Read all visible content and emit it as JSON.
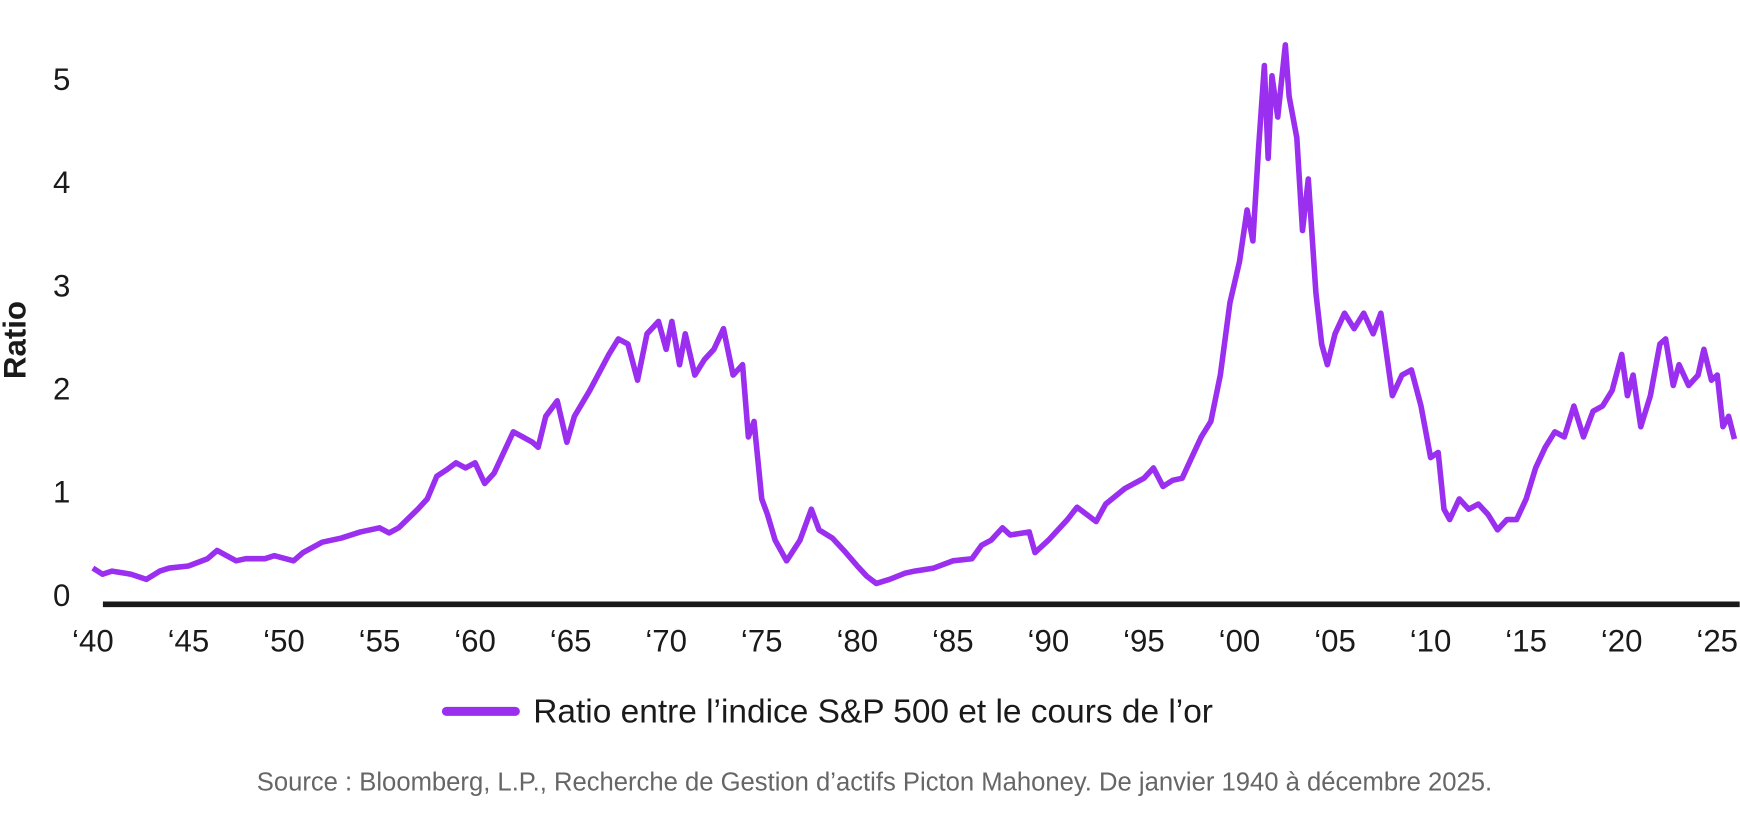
{
  "chart_data": {
    "type": "line",
    "ylabel": "Ratio",
    "legend_position": "bottom",
    "source": "Source : Bloomberg, L.P., Recherche de Gestion d’actifs Picton Mahoney. De janvier 1940 à décembre 2025.",
    "xlim": [
      1940,
      2026
    ],
    "ylim": [
      0,
      5.5
    ],
    "yticks": [
      0,
      1,
      2,
      3,
      4,
      5
    ],
    "xticks": [
      {
        "value": 1940,
        "label": "‘40"
      },
      {
        "value": 1945,
        "label": "‘45"
      },
      {
        "value": 1950,
        "label": "‘50"
      },
      {
        "value": 1955,
        "label": "‘55"
      },
      {
        "value": 1960,
        "label": "‘60"
      },
      {
        "value": 1965,
        "label": "‘65"
      },
      {
        "value": 1970,
        "label": "‘70"
      },
      {
        "value": 1975,
        "label": "‘75"
      },
      {
        "value": 1980,
        "label": "‘80"
      },
      {
        "value": 1985,
        "label": "‘85"
      },
      {
        "value": 1990,
        "label": "‘90"
      },
      {
        "value": 1995,
        "label": "‘95"
      },
      {
        "value": 2000,
        "label": "‘00"
      },
      {
        "value": 2005,
        "label": "‘05"
      },
      {
        "value": 2010,
        "label": "‘10"
      },
      {
        "value": 2015,
        "label": "‘15"
      },
      {
        "value": 2020,
        "label": "‘20"
      },
      {
        "value": 2025,
        "label": "‘25"
      }
    ],
    "grid": false,
    "x": [
      1940,
      1940.5,
      1941,
      1942,
      1942.8,
      1943.5,
      1944,
      1945,
      1946,
      1946.5,
      1947,
      1947.5,
      1948,
      1949,
      1949.5,
      1950.5,
      1951,
      1952,
      1953,
      1954,
      1955,
      1955.5,
      1956,
      1957,
      1957.5,
      1958,
      1958.5,
      1959,
      1959.5,
      1960,
      1960.5,
      1961,
      1961.5,
      1962,
      1962.5,
      1963,
      1963.3,
      1963.7,
      1964.3,
      1964.8,
      1965.2,
      1966,
      1967,
      1967.5,
      1968,
      1968.5,
      1969,
      1969.6,
      1970,
      1970.3,
      1970.7,
      1971,
      1971.5,
      1972,
      1972.5,
      1973,
      1973.5,
      1974,
      1974.3,
      1974.6,
      1975,
      1975.3,
      1975.7,
      1976.3,
      1977,
      1977.6,
      1978,
      1978.7,
      1979.3,
      1980,
      1980.5,
      1981,
      1981.7,
      1982.5,
      1983,
      1984,
      1985,
      1986,
      1986.5,
      1987,
      1987.6,
      1988,
      1989,
      1989.3,
      1990,
      1991,
      1991.5,
      1992.5,
      1993,
      1994,
      1995,
      1995.5,
      1996,
      1996.5,
      1997,
      1997.5,
      1998,
      1998.5,
      1999,
      1999.5,
      2000,
      2000.4,
      2000.7,
      2001,
      2001.3,
      2001.5,
      2001.7,
      2002,
      2002.4,
      2002.6,
      2003,
      2003.3,
      2003.6,
      2004,
      2004.3,
      2004.6,
      2005,
      2005.5,
      2006,
      2006.5,
      2007,
      2007.4,
      2008,
      2008.5,
      2009,
      2009.5,
      2010,
      2010.4,
      2010.7,
      2011,
      2011.5,
      2012,
      2012.5,
      2013,
      2013.5,
      2014,
      2014.5,
      2015,
      2015.5,
      2016,
      2016.5,
      2017,
      2017.5,
      2018,
      2018.5,
      2019,
      2019.5,
      2020,
      2020.3,
      2020.6,
      2021,
      2021.5,
      2022,
      2022.3,
      2022.7,
      2023,
      2023.5,
      2024,
      2024.3,
      2024.7,
      2025,
      2025.3,
      2025.6,
      2025.9
    ],
    "series": [
      {
        "name": "Ratio entre l’indice S&P 500 et le cours de l’or",
        "color": "#9b2ff0",
        "values": [
          0.33,
          0.27,
          0.3,
          0.27,
          0.22,
          0.3,
          0.33,
          0.35,
          0.42,
          0.5,
          0.45,
          0.4,
          0.42,
          0.42,
          0.45,
          0.4,
          0.48,
          0.58,
          0.62,
          0.68,
          0.72,
          0.67,
          0.72,
          0.9,
          1.0,
          1.22,
          1.28,
          1.35,
          1.3,
          1.35,
          1.15,
          1.25,
          1.45,
          1.65,
          1.6,
          1.55,
          1.5,
          1.8,
          1.95,
          1.55,
          1.8,
          2.05,
          2.4,
          2.55,
          2.5,
          2.15,
          2.6,
          2.72,
          2.45,
          2.72,
          2.3,
          2.6,
          2.2,
          2.35,
          2.45,
          2.65,
          2.2,
          2.3,
          1.6,
          1.75,
          1.0,
          0.85,
          0.6,
          0.4,
          0.6,
          0.9,
          0.7,
          0.62,
          0.5,
          0.35,
          0.25,
          0.18,
          0.22,
          0.28,
          0.3,
          0.33,
          0.4,
          0.42,
          0.55,
          0.6,
          0.72,
          0.65,
          0.68,
          0.48,
          0.6,
          0.8,
          0.92,
          0.78,
          0.95,
          1.1,
          1.2,
          1.3,
          1.12,
          1.18,
          1.2,
          1.4,
          1.6,
          1.75,
          2.2,
          2.9,
          3.3,
          3.8,
          3.5,
          4.4,
          5.2,
          4.3,
          5.1,
          4.7,
          5.4,
          4.9,
          4.5,
          3.6,
          4.1,
          3.0,
          2.5,
          2.3,
          2.6,
          2.8,
          2.65,
          2.8,
          2.6,
          2.8,
          2.0,
          2.2,
          2.25,
          1.9,
          1.4,
          1.45,
          0.9,
          0.8,
          1.0,
          0.9,
          0.95,
          0.85,
          0.7,
          0.8,
          0.8,
          1.0,
          1.3,
          1.5,
          1.65,
          1.6,
          1.9,
          1.6,
          1.85,
          1.9,
          2.05,
          2.4,
          2.0,
          2.2,
          1.7,
          2.0,
          2.5,
          2.55,
          2.1,
          2.3,
          2.1,
          2.2,
          2.45,
          2.15,
          2.2,
          1.7,
          1.8,
          1.58
        ]
      }
    ]
  }
}
